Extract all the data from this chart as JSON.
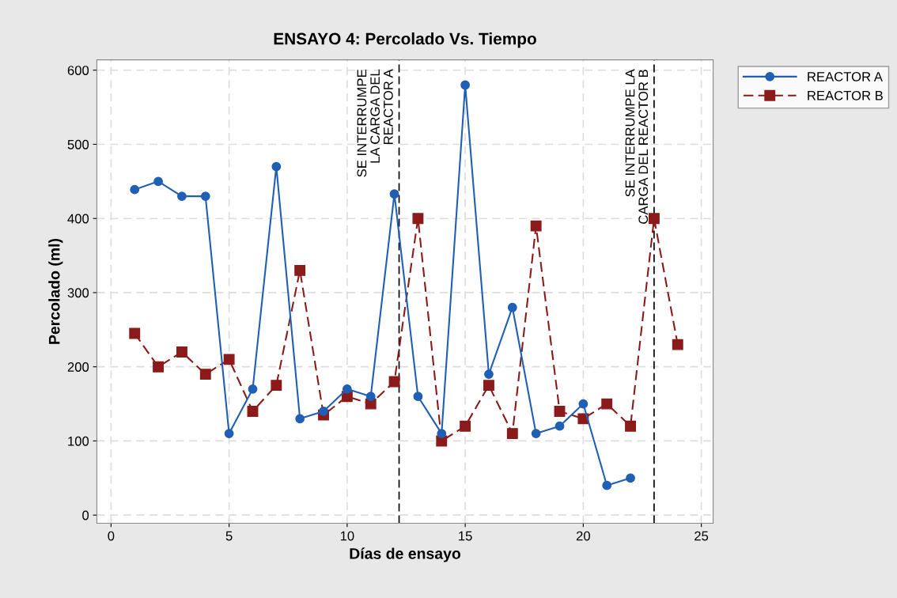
{
  "chart_data": {
    "type": "line",
    "title": "ENSAYO 4: Percolado Vs. Tiempo",
    "xlabel": "Días de ensayo",
    "ylabel": "Percolado (ml)",
    "xlim": [
      -0.6,
      25.5
    ],
    "xticks": [
      0,
      5,
      10,
      15,
      20,
      25
    ],
    "ylim": [
      -11,
      614
    ],
    "yticks": [
      0,
      100,
      200,
      300,
      400,
      500,
      600
    ],
    "grid": true,
    "legend": "top right",
    "series": [
      {
        "name": "REACTOR A",
        "color": "#1f5fb4",
        "marker": "circle",
        "line_style": "solid",
        "x": [
          1,
          2,
          3,
          4,
          5,
          6,
          7,
          8,
          9,
          10,
          11,
          12,
          13,
          14,
          15,
          16,
          17,
          18,
          19,
          20,
          21,
          22
        ],
        "values": [
          439,
          450,
          430,
          430,
          110,
          170,
          470,
          130,
          140,
          170,
          160,
          433,
          160,
          110,
          580,
          190,
          280,
          110,
          120,
          150,
          40,
          50
        ]
      },
      {
        "name": "REACTOR B",
        "color": "#8b1a1a",
        "marker": "square",
        "line_style": "dashed",
        "x": [
          1,
          2,
          3,
          4,
          5,
          6,
          7,
          8,
          9,
          10,
          11,
          12,
          13,
          14,
          15,
          16,
          17,
          18,
          19,
          20,
          21,
          22,
          23,
          24
        ],
        "values": [
          245,
          200,
          220,
          190,
          210,
          140,
          175,
          330,
          135,
          160,
          150,
          180,
          400,
          100,
          120,
          175,
          110,
          390,
          140,
          130,
          150,
          120,
          400,
          230
        ]
      }
    ],
    "ref_lines": [
      {
        "axis": "x",
        "value": 12.2,
        "label": "SE INTERRUMPE\nLA CARGA DEL\nREACTOR A",
        "color": "#000000",
        "line_style": "dashed"
      },
      {
        "axis": "x",
        "value": 23,
        "label": "SE INTERRUMPE LA\nCARGA DEL REACTOR B",
        "color": "#000000",
        "line_style": "dashed"
      }
    ]
  }
}
